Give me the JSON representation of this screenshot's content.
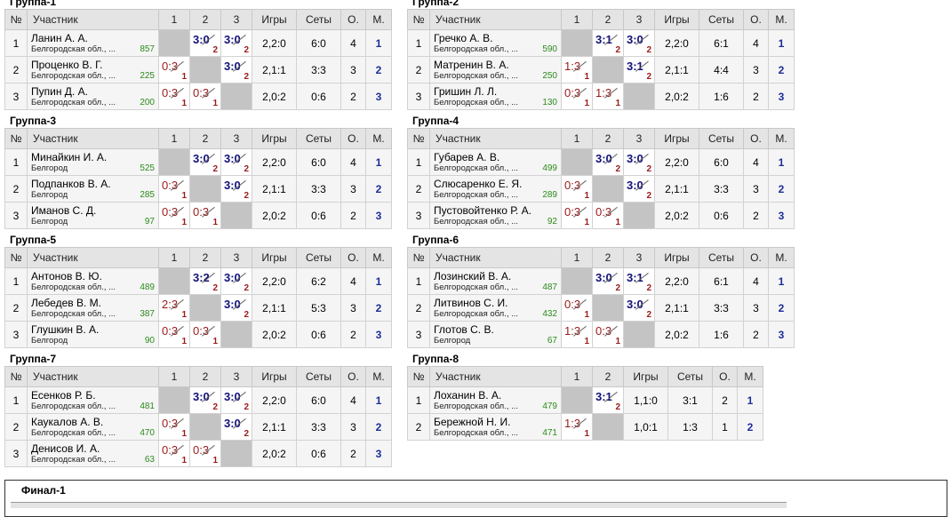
{
  "headers": {
    "num": "№",
    "player": "Участник",
    "games": "Игры",
    "sets": "Сеты",
    "points": "О.",
    "place": "М."
  },
  "groups": [
    {
      "title": "Группа-1",
      "players": [
        {
          "n": "1",
          "name": "Ланин А. А.",
          "region": "Белгородская обл., ...",
          "rating": "857",
          "res": [
            null,
            {
              "s": "3:0",
              "w": true,
              "o": "2"
            },
            {
              "s": "3:0",
              "w": true,
              "o": "2"
            }
          ],
          "games": "2,2:0",
          "sets": "6:0",
          "points": "4",
          "place": "1"
        },
        {
          "n": "2",
          "name": "Проценко В. Г.",
          "region": "Белгородская обл., ...",
          "rating": "225",
          "res": [
            {
              "s": "0:3",
              "w": false,
              "o": "1"
            },
            null,
            {
              "s": "3:0",
              "w": true,
              "o": "2"
            }
          ],
          "games": "2,1:1",
          "sets": "3:3",
          "points": "3",
          "place": "2"
        },
        {
          "n": "3",
          "name": "Пупин Д. А.",
          "region": "Белгородская обл., ...",
          "rating": "200",
          "res": [
            {
              "s": "0:3",
              "w": false,
              "o": "1"
            },
            {
              "s": "0:3",
              "w": false,
              "o": "1"
            },
            null
          ],
          "games": "2,0:2",
          "sets": "0:6",
          "points": "2",
          "place": "3"
        }
      ]
    },
    {
      "title": "Группа-2",
      "players": [
        {
          "n": "1",
          "name": "Гречко А. В.",
          "region": "Белгородская обл., ...",
          "rating": "590",
          "res": [
            null,
            {
              "s": "3:1",
              "w": true,
              "o": "2"
            },
            {
              "s": "3:0",
              "w": true,
              "o": "2"
            }
          ],
          "games": "2,2:0",
          "sets": "6:1",
          "points": "4",
          "place": "1"
        },
        {
          "n": "2",
          "name": "Матренин В. А.",
          "region": "Белгородская обл., ...",
          "rating": "250",
          "res": [
            {
              "s": "1:3",
              "w": false,
              "o": "1"
            },
            null,
            {
              "s": "3:1",
              "w": true,
              "o": "2"
            }
          ],
          "games": "2,1:1",
          "sets": "4:4",
          "points": "3",
          "place": "2"
        },
        {
          "n": "3",
          "name": "Гришин Л. Л.",
          "region": "Белгородская обл., ...",
          "rating": "130",
          "res": [
            {
              "s": "0:3",
              "w": false,
              "o": "1"
            },
            {
              "s": "1:3",
              "w": false,
              "o": "1"
            },
            null
          ],
          "games": "2,0:2",
          "sets": "1:6",
          "points": "2",
          "place": "3"
        }
      ]
    },
    {
      "title": "Группа-3",
      "players": [
        {
          "n": "1",
          "name": "Минайкин И. А.",
          "region": "Белгород",
          "rating": "525",
          "res": [
            null,
            {
              "s": "3:0",
              "w": true,
              "o": "2"
            },
            {
              "s": "3:0",
              "w": true,
              "o": "2"
            }
          ],
          "games": "2,2:0",
          "sets": "6:0",
          "points": "4",
          "place": "1"
        },
        {
          "n": "2",
          "name": "Подпанков В. А.",
          "region": "Белгород",
          "rating": "285",
          "res": [
            {
              "s": "0:3",
              "w": false,
              "o": "1"
            },
            null,
            {
              "s": "3:0",
              "w": true,
              "o": "2"
            }
          ],
          "games": "2,1:1",
          "sets": "3:3",
          "points": "3",
          "place": "2"
        },
        {
          "n": "3",
          "name": "Иманов С. Д.",
          "region": "Белгород",
          "rating": "97",
          "res": [
            {
              "s": "0:3",
              "w": false,
              "o": "1"
            },
            {
              "s": "0:3",
              "w": false,
              "o": "1"
            },
            null
          ],
          "games": "2,0:2",
          "sets": "0:6",
          "points": "2",
          "place": "3"
        }
      ]
    },
    {
      "title": "Группа-4",
      "players": [
        {
          "n": "1",
          "name": "Губарев А. В.",
          "region": "Белгородская обл., ...",
          "rating": "499",
          "res": [
            null,
            {
              "s": "3:0",
              "w": true,
              "o": "2"
            },
            {
              "s": "3:0",
              "w": true,
              "o": "2"
            }
          ],
          "games": "2,2:0",
          "sets": "6:0",
          "points": "4",
          "place": "1"
        },
        {
          "n": "2",
          "name": "Слюсаренко Е. Я.",
          "region": "Белгородская обл., ...",
          "rating": "289",
          "res": [
            {
              "s": "0:3",
              "w": false,
              "o": "1"
            },
            null,
            {
              "s": "3:0",
              "w": true,
              "o": "2"
            }
          ],
          "games": "2,1:1",
          "sets": "3:3",
          "points": "3",
          "place": "2"
        },
        {
          "n": "3",
          "name": "Пустовойтенко Р. А.",
          "region": "Белгородская обл., ...",
          "rating": "92",
          "res": [
            {
              "s": "0:3",
              "w": false,
              "o": "1"
            },
            {
              "s": "0:3",
              "w": false,
              "o": "1"
            },
            null
          ],
          "games": "2,0:2",
          "sets": "0:6",
          "points": "2",
          "place": "3"
        }
      ]
    },
    {
      "title": "Группа-5",
      "players": [
        {
          "n": "1",
          "name": "Антонов В. Ю.",
          "region": "Белгородская обл., ...",
          "rating": "489",
          "res": [
            null,
            {
              "s": "3:2",
              "w": true,
              "o": "2"
            },
            {
              "s": "3:0",
              "w": true,
              "o": "2"
            }
          ],
          "games": "2,2:0",
          "sets": "6:2",
          "points": "4",
          "place": "1"
        },
        {
          "n": "2",
          "name": "Лебедев В. М.",
          "region": "Белгородская обл., ...",
          "rating": "387",
          "res": [
            {
              "s": "2:3",
              "w": false,
              "o": "1"
            },
            null,
            {
              "s": "3:0",
              "w": true,
              "o": "2"
            }
          ],
          "games": "2,1:1",
          "sets": "5:3",
          "points": "3",
          "place": "2"
        },
        {
          "n": "3",
          "name": "Глушкин В. А.",
          "region": "Белгород",
          "rating": "90",
          "res": [
            {
              "s": "0:3",
              "w": false,
              "o": "1"
            },
            {
              "s": "0:3",
              "w": false,
              "o": "1"
            },
            null
          ],
          "games": "2,0:2",
          "sets": "0:6",
          "points": "2",
          "place": "3"
        }
      ]
    },
    {
      "title": "Группа-6",
      "players": [
        {
          "n": "1",
          "name": "Лозинский В. А.",
          "region": "Белгородская обл., ...",
          "rating": "487",
          "res": [
            null,
            {
              "s": "3:0",
              "w": true,
              "o": "2"
            },
            {
              "s": "3:1",
              "w": true,
              "o": "2"
            }
          ],
          "games": "2,2:0",
          "sets": "6:1",
          "points": "4",
          "place": "1"
        },
        {
          "n": "2",
          "name": "Литвинов С. И.",
          "region": "Белгородская обл., ...",
          "rating": "432",
          "res": [
            {
              "s": "0:3",
              "w": false,
              "o": "1"
            },
            null,
            {
              "s": "3:0",
              "w": true,
              "o": "2"
            }
          ],
          "games": "2,1:1",
          "sets": "3:3",
          "points": "3",
          "place": "2"
        },
        {
          "n": "3",
          "name": "Глотов С. В.",
          "region": "Белгород",
          "rating": "67",
          "res": [
            {
              "s": "1:3",
              "w": false,
              "o": "1"
            },
            {
              "s": "0:3",
              "w": false,
              "o": "1"
            },
            null
          ],
          "games": "2,0:2",
          "sets": "1:6",
          "points": "2",
          "place": "3"
        }
      ]
    },
    {
      "title": "Группа-7",
      "players": [
        {
          "n": "1",
          "name": "Есенков Р. Б.",
          "region": "Белгородская обл., ...",
          "rating": "481",
          "res": [
            null,
            {
              "s": "3:0",
              "w": true,
              "o": "2"
            },
            {
              "s": "3:0",
              "w": true,
              "o": "2"
            }
          ],
          "games": "2,2:0",
          "sets": "6:0",
          "points": "4",
          "place": "1"
        },
        {
          "n": "2",
          "name": "Каукалов А. В.",
          "region": "Белгородская обл., ...",
          "rating": "470",
          "res": [
            {
              "s": "0:3",
              "w": false,
              "o": "1"
            },
            null,
            {
              "s": "3:0",
              "w": true,
              "o": "2"
            }
          ],
          "games": "2,1:1",
          "sets": "3:3",
          "points": "3",
          "place": "2"
        },
        {
          "n": "3",
          "name": "Денисов И. А.",
          "region": "Белгородская обл., ...",
          "rating": "63",
          "res": [
            {
              "s": "0:3",
              "w": false,
              "o": "1"
            },
            {
              "s": "0:3",
              "w": false,
              "o": "1"
            },
            null
          ],
          "games": "2,0:2",
          "sets": "0:6",
          "points": "2",
          "place": "3"
        }
      ]
    },
    {
      "title": "Группа-8",
      "players": [
        {
          "n": "1",
          "name": "Лоханин В. А.",
          "region": "Белгородская обл., ...",
          "rating": "479",
          "res": [
            null,
            {
              "s": "3:1",
              "w": true,
              "o": "2"
            }
          ],
          "games": "1,1:0",
          "sets": "3:1",
          "points": "2",
          "place": "1"
        },
        {
          "n": "2",
          "name": "Бережной Н. И.",
          "region": "Белгородская обл., ...",
          "rating": "471",
          "res": [
            {
              "s": "1:3",
              "w": false,
              "o": "1"
            },
            null
          ],
          "games": "1,0:1",
          "sets": "1:3",
          "points": "1",
          "place": "2"
        }
      ]
    }
  ],
  "final": {
    "title": "Финал-1"
  }
}
